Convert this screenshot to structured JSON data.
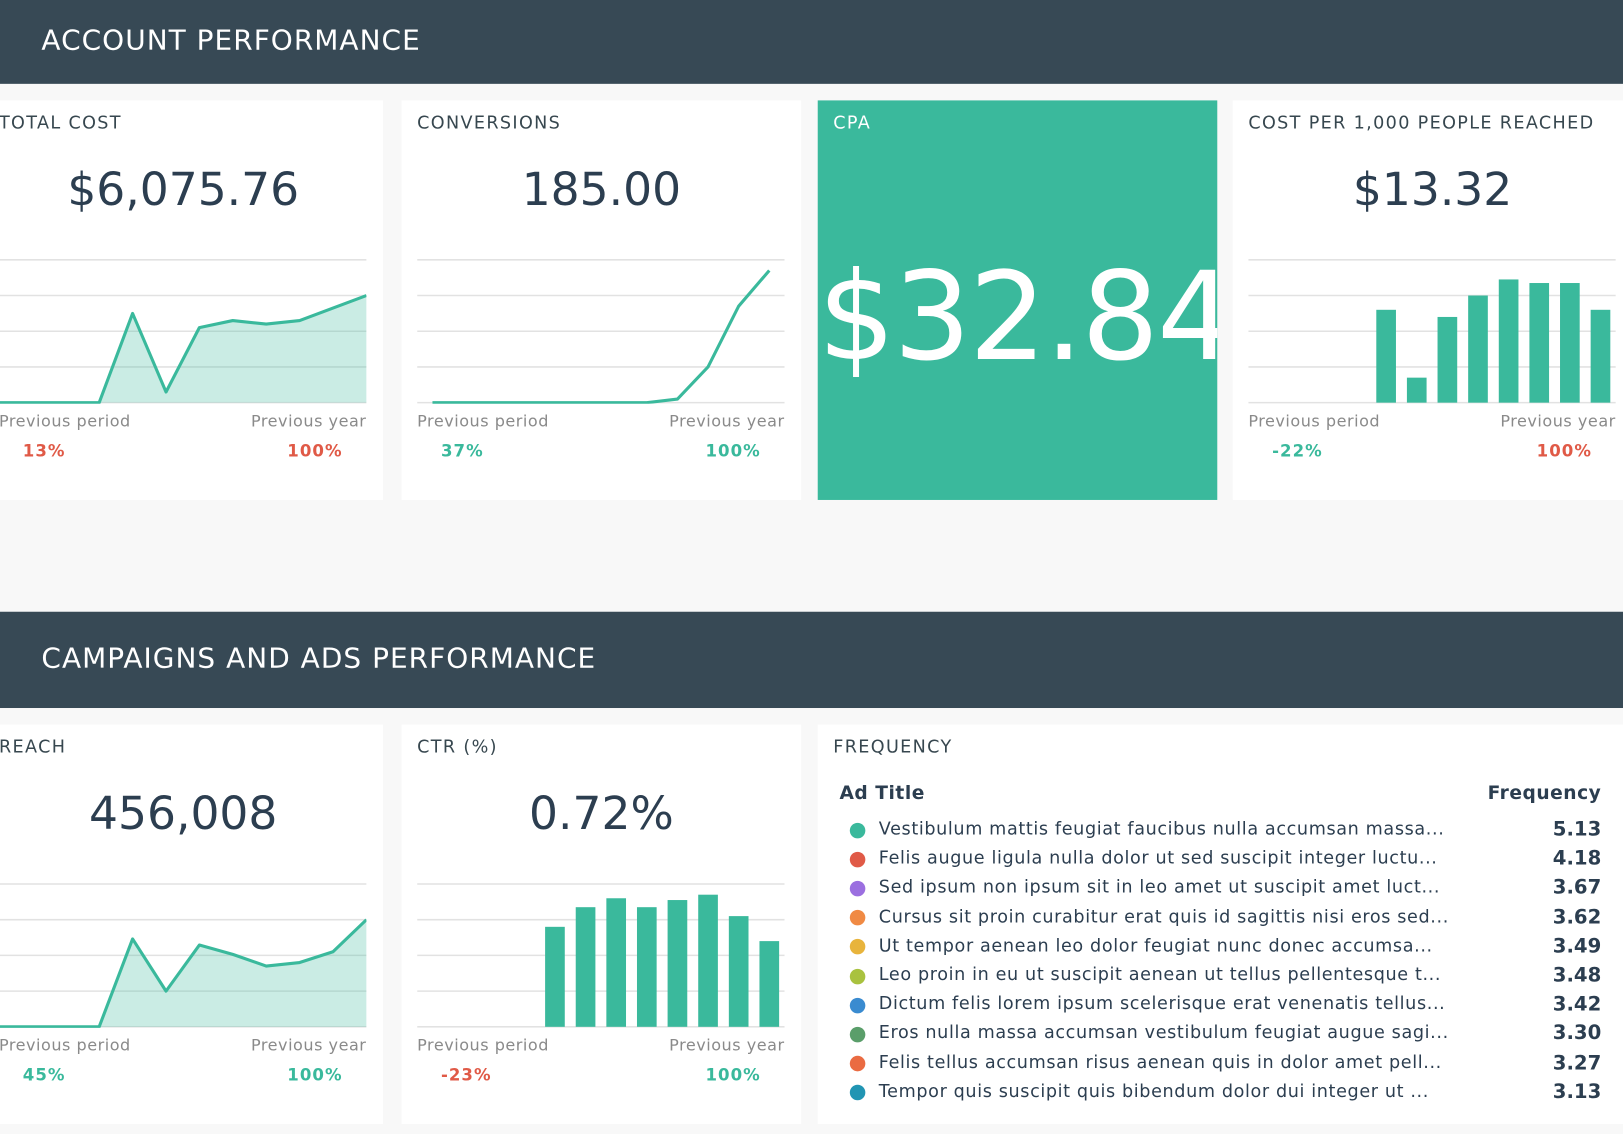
{
  "sections": [
    {
      "title": "ACCOUNT PERFORMANCE",
      "cards": [
        {
          "title": "TOTAL COST",
          "value": "$6,075.76",
          "chart": {
            "type": "area",
            "color": "#3ab99c",
            "values": [
              0,
              0,
              0,
              0,
              2.5,
              0.3,
              2.1,
              2.3,
              2.2,
              2.3,
              2.65,
              3.0
            ],
            "ylim": [
              0,
              4
            ],
            "yticks": [
              0,
              1,
              2,
              3,
              4
            ]
          },
          "previous_period": {
            "label": "Previous period",
            "change": "13%",
            "color": "#e05a47"
          },
          "previous_year": {
            "label": "Previous year",
            "change": "100%",
            "color": "#e05a47"
          }
        },
        {
          "title": "CONVERSIONS",
          "value": "185.00",
          "chart": {
            "type": "line",
            "color": "#3ab99c",
            "values": [
              0,
              0,
              0,
              0,
              0,
              0,
              0,
              0,
              0.1,
              1.0,
              2.7,
              3.7
            ],
            "ylim": [
              0,
              4
            ],
            "yticks": [
              0,
              1,
              2,
              3,
              4
            ]
          },
          "previous_period": {
            "label": "Previous period",
            "change": "37%",
            "color": "#3ab99c"
          },
          "previous_year": {
            "label": "Previous year",
            "change": "100%",
            "color": "#3ab99c"
          }
        },
        {
          "title": "CPA",
          "value": "$32.84",
          "highlight_color": "#3ab99c"
        },
        {
          "title": "COST PER 1,000 PEOPLE REACHED",
          "value": "$13.32",
          "chart": {
            "type": "bar",
            "color": "#3ab99c",
            "values": [
              0,
              0,
              0,
              0,
              2.6,
              0.7,
              2.4,
              3.0,
              3.45,
              3.35,
              3.35,
              2.6
            ],
            "ylim": [
              0,
              4
            ],
            "yticks": [
              0,
              1,
              2,
              3,
              4
            ]
          },
          "previous_period": {
            "label": "Previous period",
            "change": "-22%",
            "color": "#3ab99c"
          },
          "previous_year": {
            "label": "Previous year",
            "change": "100%",
            "color": "#e05a47"
          }
        }
      ]
    },
    {
      "title": "CAMPAIGNS AND ADS PERFORMANCE",
      "cards": [
        {
          "title": "REACH",
          "value": "456,008",
          "chart": {
            "type": "area",
            "color": "#3ab99c",
            "values": [
              0,
              0,
              0,
              0,
              2.46,
              1.0,
              2.29,
              2.03,
              1.7,
              1.8,
              2.1,
              3.0
            ],
            "ylim": [
              0,
              4
            ],
            "yticks": [
              0,
              1,
              2,
              3,
              4
            ]
          },
          "previous_period": {
            "label": "Previous period",
            "change": "45%",
            "color": "#3ab99c"
          },
          "previous_year": {
            "label": "Previous year",
            "change": "100%",
            "color": "#3ab99c"
          }
        },
        {
          "title": "CTR (%)",
          "value": "0.72%",
          "chart": {
            "type": "bar",
            "color": "#3ab99c",
            "values": [
              0,
              0,
              0,
              0,
              2.8,
              3.35,
              3.6,
              3.35,
              3.55,
              3.7,
              3.1,
              2.4
            ],
            "ylim": [
              0,
              4
            ],
            "yticks": [
              0,
              1,
              2,
              3,
              4
            ]
          },
          "previous_period": {
            "label": "Previous period",
            "change": "-23%",
            "color": "#e05a47"
          },
          "previous_year": {
            "label": "Previous year",
            "change": "100%",
            "color": "#3ab99c"
          }
        },
        {
          "title": "FREQUENCY",
          "table": {
            "columns": [
              "Ad Title",
              "Frequency"
            ],
            "rows": [
              {
                "color": "#3ab99c",
                "title": "Vestibulum mattis feugiat faucibus nulla accumsan massa...",
                "value": "5.13"
              },
              {
                "color": "#e05a47",
                "title": "Felis augue ligula nulla dolor ut sed suscipit integer luctu...",
                "value": "4.18"
              },
              {
                "color": "#9b6fe0",
                "title": "Sed ipsum non ipsum sit in leo amet ut suscipit amet luct...",
                "value": "3.67"
              },
              {
                "color": "#f08a44",
                "title": "Cursus sit proin curabitur erat quis id sagittis nisi eros sed...",
                "value": "3.62"
              },
              {
                "color": "#e8b43c",
                "title": "Ut tempor aenean leo dolor feugiat nunc donec accumsa...",
                "value": "3.49"
              },
              {
                "color": "#a9c23f",
                "title": "Leo proin in eu ut suscipit aenean ut tellus pellentesque t...",
                "value": "3.48"
              },
              {
                "color": "#3a8bd0",
                "title": "Dictum felis lorem ipsum scelerisque erat venenatis tellus...",
                "value": "3.42"
              },
              {
                "color": "#5a9e6a",
                "title": "Eros nulla massa accumsan vestibulum feugiat augue sagi...",
                "value": "3.30"
              },
              {
                "color": "#ea6b42",
                "title": "Felis tellus accumsan risus aenean quis in dolor amet pell...",
                "value": "3.27"
              },
              {
                "color": "#2195b3",
                "title": "Tempor quis suscipit quis bibendum dolor dui integer ut ...",
                "value": "3.13"
              }
            ]
          }
        }
      ]
    }
  ]
}
